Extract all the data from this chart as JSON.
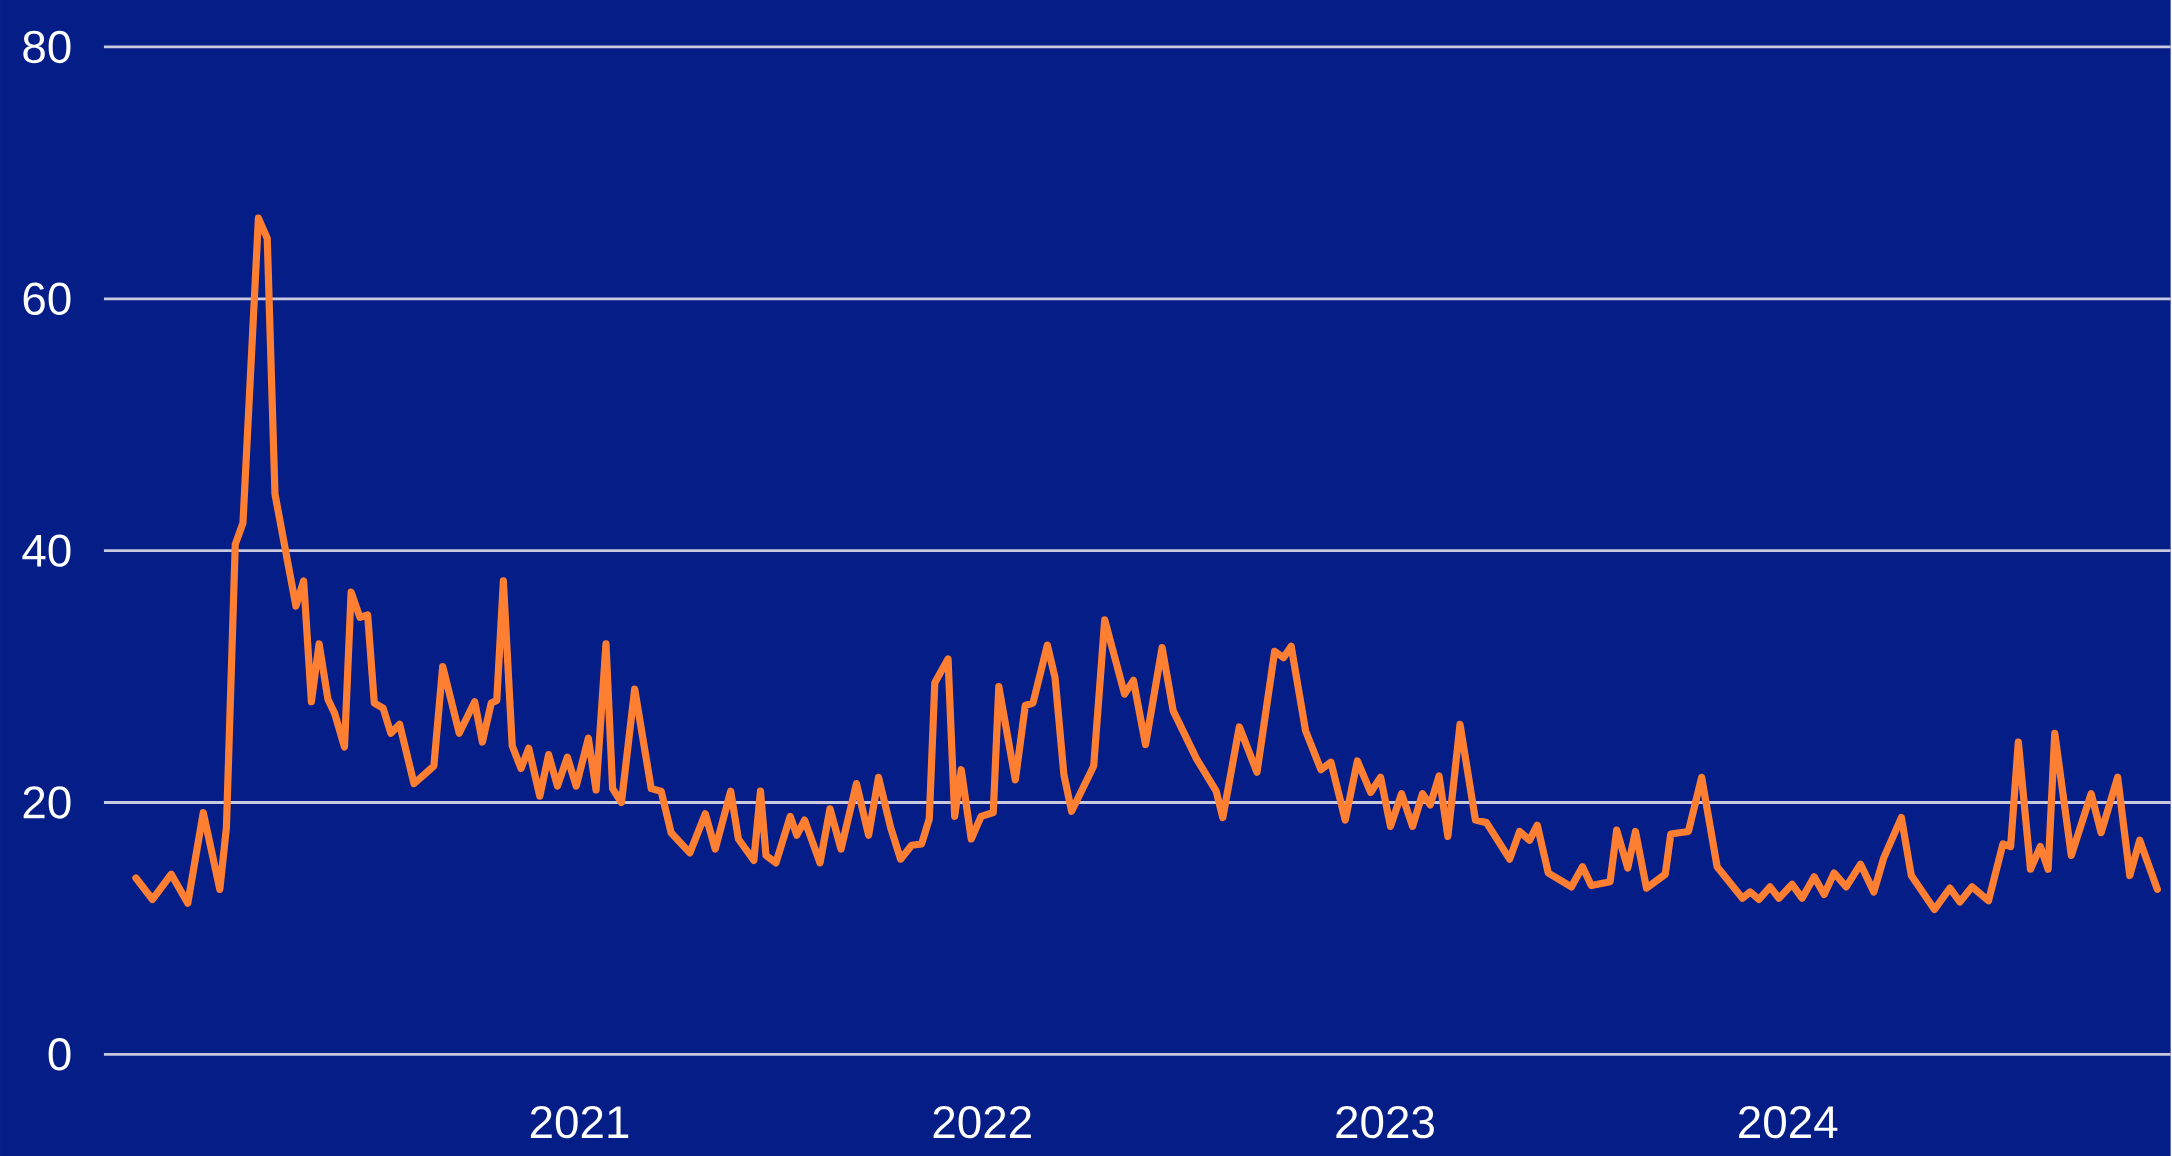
{
  "chart_data": {
    "type": "line",
    "color": "#ff7f32",
    "grid": "y",
    "line_style": "solid",
    "x": [
      "2019-11-26",
      "2019-12-11",
      "2019-12-28",
      "2020-01-12",
      "2020-01-26",
      "2020-02-10",
      "2020-02-16",
      "2020-02-24",
      "2020-03-02",
      "2020-03-16",
      "2020-03-24",
      "2020-03-31",
      "2020-04-19",
      "2020-04-26",
      "2020-05-03",
      "2020-05-10",
      "2020-05-18",
      "2020-05-24",
      "2020-06-02",
      "2020-06-08",
      "2020-06-16",
      "2020-06-23",
      "2020-06-29",
      "2020-07-07",
      "2020-07-14",
      "2020-07-22",
      "2020-08-04",
      "2020-08-22",
      "2020-08-30",
      "2020-09-14",
      "2020-09-28",
      "2020-10-05",
      "2020-10-13",
      "2020-10-18",
      "2020-10-24",
      "2020-11-01",
      "2020-11-09",
      "2020-11-16",
      "2020-11-26",
      "2020-12-04",
      "2020-12-12",
      "2020-12-21",
      "2020-12-29",
      "2021-01-09",
      "2021-01-16",
      "2021-01-25",
      "2021-01-31",
      "2021-02-08",
      "2021-02-20",
      "2021-03-07",
      "2021-03-16",
      "2021-03-25",
      "2021-04-11",
      "2021-04-25",
      "2021-05-04",
      "2021-05-18",
      "2021-05-25",
      "2021-06-08",
      "2021-06-14",
      "2021-06-19",
      "2021-06-28",
      "2021-07-11",
      "2021-07-17",
      "2021-07-24",
      "2021-08-07",
      "2021-08-16",
      "2021-08-26",
      "2021-09-09",
      "2021-09-20",
      "2021-09-29",
      "2021-10-10",
      "2021-10-19",
      "2021-10-29",
      "2021-11-07",
      "2021-11-14",
      "2021-11-19",
      "2021-12-01",
      "2021-12-07",
      "2021-12-13",
      "2021-12-22",
      "2021-12-31",
      "2022-01-11",
      "2022-01-16",
      "2022-01-31",
      "2022-02-09",
      "2022-02-16",
      "2022-03-01",
      "2022-03-08",
      "2022-03-16",
      "2022-03-23",
      "2022-04-12",
      "2022-04-22",
      "2022-05-10",
      "2022-05-18",
      "2022-05-29",
      "2022-06-13",
      "2022-06-23",
      "2022-07-14",
      "2022-08-01",
      "2022-08-07",
      "2022-08-22",
      "2022-09-07",
      "2022-09-23",
      "2022-10-01",
      "2022-10-08",
      "2022-10-21",
      "2022-11-04",
      "2022-11-13",
      "2022-11-26",
      "2022-12-07",
      "2022-12-19",
      "2022-12-28",
      "2023-01-06",
      "2023-01-16",
      "2023-01-26",
      "2023-02-04",
      "2023-02-11",
      "2023-02-19",
      "2023-02-27",
      "2023-03-10",
      "2023-03-24",
      "2023-04-03",
      "2023-04-24",
      "2023-05-03",
      "2023-05-12",
      "2023-05-19",
      "2023-05-29",
      "2023-06-19",
      "2023-06-29",
      "2023-07-07",
      "2023-07-24",
      "2023-07-30",
      "2023-08-09",
      "2023-08-16",
      "2023-08-26",
      "2023-09-12",
      "2023-09-17",
      "2023-10-03",
      "2023-10-15",
      "2023-10-29",
      "2023-11-21",
      "2023-11-28",
      "2023-12-06",
      "2023-12-16",
      "2023-12-24",
      "2024-01-05",
      "2024-01-14",
      "2024-01-25",
      "2024-02-03",
      "2024-02-12",
      "2024-02-23",
      "2024-03-07",
      "2024-03-19",
      "2024-03-28",
      "2024-04-13",
      "2024-04-22",
      "2024-05-13",
      "2024-05-27",
      "2024-06-05",
      "2024-06-16",
      "2024-07-01",
      "2024-07-14",
      "2024-07-21",
      "2024-07-28",
      "2024-08-08",
      "2024-08-17",
      "2024-08-24",
      "2024-08-30",
      "2024-09-14",
      "2024-10-02",
      "2024-10-11",
      "2024-10-26",
      "2024-11-06",
      "2024-11-15",
      "2024-12-01"
    ],
    "values": [
      14.0,
      12.3,
      14.3,
      12.0,
      19.2,
      13.1,
      18.0,
      40.5,
      42.2,
      66.4,
      64.8,
      44.5,
      35.6,
      37.6,
      28.0,
      32.6,
      28.2,
      27.1,
      24.4,
      36.7,
      34.7,
      34.9,
      27.9,
      27.5,
      25.5,
      26.2,
      21.5,
      22.9,
      30.8,
      25.5,
      28.0,
      24.8,
      27.9,
      28.1,
      37.6,
      24.5,
      22.7,
      24.3,
      20.5,
      23.8,
      21.3,
      23.6,
      21.3,
      25.1,
      21.0,
      32.6,
      21.1,
      20.0,
      29.0,
      21.1,
      20.9,
      17.6,
      16.0,
      19.1,
      16.3,
      20.9,
      17.1,
      15.4,
      20.9,
      15.8,
      15.2,
      18.9,
      17.4,
      18.6,
      15.2,
      19.5,
      16.3,
      21.5,
      17.4,
      22.0,
      18.0,
      15.5,
      16.6,
      16.7,
      18.7,
      29.5,
      31.4,
      18.9,
      22.6,
      17.1,
      18.9,
      19.2,
      29.2,
      21.8,
      27.7,
      27.9,
      32.5,
      29.9,
      22.2,
      19.3,
      22.9,
      34.5,
      28.6,
      29.7,
      24.6,
      32.3,
      27.3,
      23.5,
      20.9,
      18.8,
      26.0,
      22.4,
      32.0,
      31.5,
      32.4,
      25.7,
      22.6,
      23.2,
      18.6,
      23.3,
      20.8,
      22.0,
      18.1,
      20.7,
      18.1,
      20.7,
      19.8,
      22.1,
      17.3,
      26.2,
      18.6,
      18.4,
      15.5,
      17.7,
      17.0,
      18.2,
      14.4,
      13.3,
      14.9,
      13.4,
      13.7,
      17.8,
      14.8,
      17.7,
      13.2,
      14.3,
      17.5,
      17.7,
      22.0,
      14.9,
      12.4,
      12.9,
      12.3,
      13.3,
      12.4,
      13.5,
      12.4,
      14.1,
      12.7,
      14.4,
      13.3,
      15.1,
      12.9,
      15.6,
      18.8,
      14.2,
      11.5,
      13.2,
      12.1,
      13.3,
      12.2,
      16.7,
      16.5,
      24.8,
      14.7,
      16.5,
      14.7,
      25.5,
      15.8,
      20.7,
      17.6,
      22.0,
      14.2,
      17.0,
      13.1
    ],
    "xlim": [
      "2019-10-28",
      "2024-12-13"
    ],
    "ylim": [
      0,
      80
    ],
    "xticks": [
      {
        "value": "2021-01-01",
        "label": "2021"
      },
      {
        "value": "2022-01-01",
        "label": "2022"
      },
      {
        "value": "2023-01-01",
        "label": "2023"
      },
      {
        "value": "2024-01-01",
        "label": "2024"
      }
    ],
    "yticks": [
      0,
      20,
      40,
      60,
      80
    ]
  }
}
